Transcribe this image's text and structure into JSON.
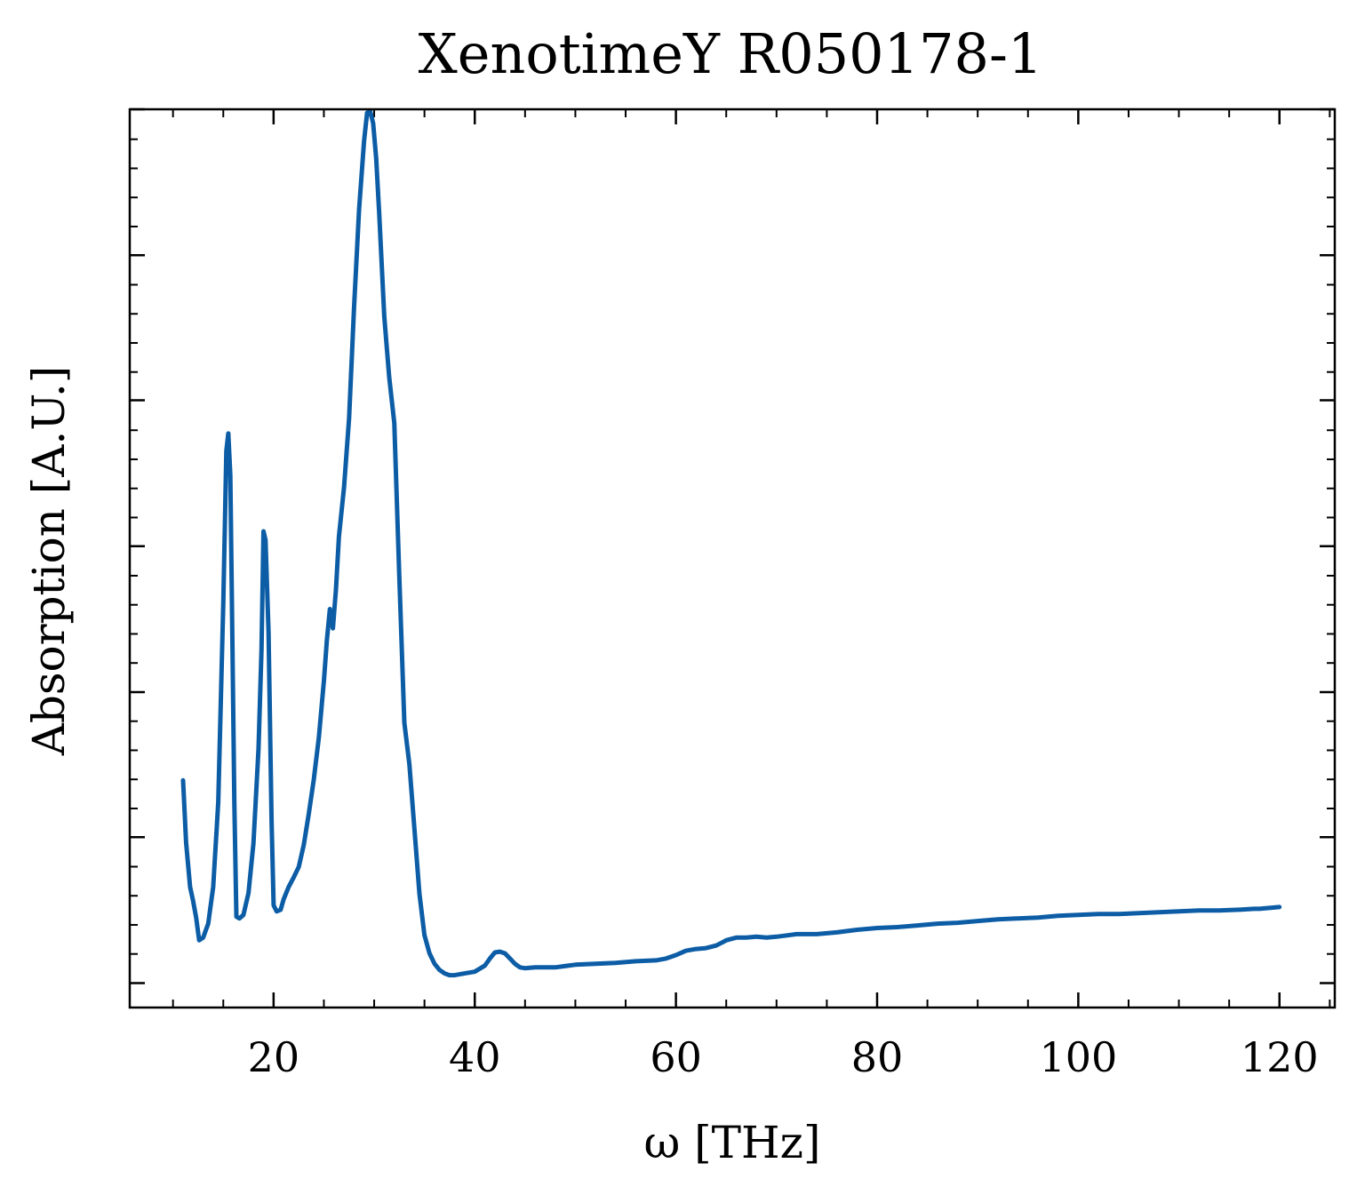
{
  "chart_data": {
    "type": "line",
    "title": "XenotimeY R050178-1",
    "xlabel": "ω [THz]",
    "ylabel": "Absorption [A.U.]",
    "xlim": [
      5.7,
      125.5
    ],
    "ylim": [
      -0.028,
      1.0
    ],
    "x_ticks": [
      20,
      40,
      60,
      80,
      100,
      120
    ],
    "x_minor_step": 5,
    "y_ticks": [
      0.0,
      0.167,
      0.333,
      0.5,
      0.667,
      0.833,
      1.0
    ],
    "y_tick_labels_shown": false,
    "y_minor_step": 0.0333,
    "grid": false,
    "color": "#0c5da5",
    "series": [
      {
        "x": [
          11.0,
          11.3,
          11.7,
          12.0,
          12.3,
          12.6,
          13.0,
          13.5,
          14.0,
          14.5,
          15.0,
          15.3,
          15.5,
          15.7,
          15.9,
          16.1,
          16.3,
          16.6,
          17.0,
          17.5,
          18.0,
          18.5,
          18.8,
          19.0,
          19.2,
          19.5,
          19.8,
          20.0,
          20.3,
          20.7,
          21.0,
          21.5,
          22.0,
          22.5,
          23.0,
          23.5,
          24.0,
          24.5,
          25.0,
          25.3,
          25.6,
          25.9,
          26.2,
          26.5,
          27.0,
          27.5,
          28.0,
          28.5,
          29.0,
          29.3,
          29.6,
          29.9,
          30.2,
          30.5,
          31.0,
          31.5,
          32.0,
          32.5,
          33.0,
          33.5,
          34.0,
          34.5,
          35.0,
          35.5,
          36.0,
          36.5,
          37.0,
          37.5,
          38.0,
          39.0,
          40.0,
          41.0,
          41.5,
          42.0,
          42.5,
          43.0,
          43.5,
          44.0,
          44.5,
          45.0,
          46.0,
          48.0,
          50.0,
          52.0,
          54.0,
          56.0,
          58.0,
          59.0,
          60.0,
          61.0,
          62.0,
          63.0,
          64.0,
          64.7,
          65.0,
          66.0,
          67.0,
          68.0,
          69.0,
          70.0,
          72.0,
          74.0,
          76.0,
          78.0,
          80.0,
          82.0,
          84.0,
          86.0,
          88.0,
          90.0,
          92.0,
          94.0,
          96.0,
          98.0,
          100.0,
          102.0,
          104.0,
          106.0,
          108.0,
          110.0,
          112.0,
          114.0,
          116.0,
          117.5,
          118.0,
          119.0,
          120.0
        ],
        "y": [
          0.232,
          0.161,
          0.11,
          0.094,
          0.075,
          0.049,
          0.052,
          0.068,
          0.11,
          0.207,
          0.436,
          0.609,
          0.629,
          0.581,
          0.391,
          0.207,
          0.076,
          0.074,
          0.078,
          0.103,
          0.16,
          0.268,
          0.383,
          0.517,
          0.507,
          0.401,
          0.185,
          0.089,
          0.082,
          0.084,
          0.096,
          0.11,
          0.121,
          0.133,
          0.158,
          0.194,
          0.233,
          0.281,
          0.346,
          0.392,
          0.428,
          0.406,
          0.45,
          0.511,
          0.567,
          0.646,
          0.773,
          0.886,
          0.964,
          0.996,
          0.998,
          0.984,
          0.944,
          0.881,
          0.763,
          0.693,
          0.641,
          0.466,
          0.298,
          0.25,
          0.177,
          0.102,
          0.055,
          0.034,
          0.022,
          0.015,
          0.011,
          0.009,
          0.009,
          0.011,
          0.013,
          0.02,
          0.028,
          0.035,
          0.036,
          0.034,
          0.028,
          0.022,
          0.018,
          0.017,
          0.018,
          0.018,
          0.021,
          0.022,
          0.023,
          0.025,
          0.026,
          0.028,
          0.032,
          0.037,
          0.039,
          0.04,
          0.043,
          0.047,
          0.049,
          0.052,
          0.052,
          0.053,
          0.052,
          0.053,
          0.056,
          0.056,
          0.058,
          0.061,
          0.063,
          0.064,
          0.066,
          0.068,
          0.069,
          0.071,
          0.073,
          0.074,
          0.075,
          0.077,
          0.078,
          0.079,
          0.079,
          0.08,
          0.081,
          0.082,
          0.083,
          0.083,
          0.084,
          0.085,
          0.085,
          0.086,
          0.087
        ]
      }
    ]
  }
}
